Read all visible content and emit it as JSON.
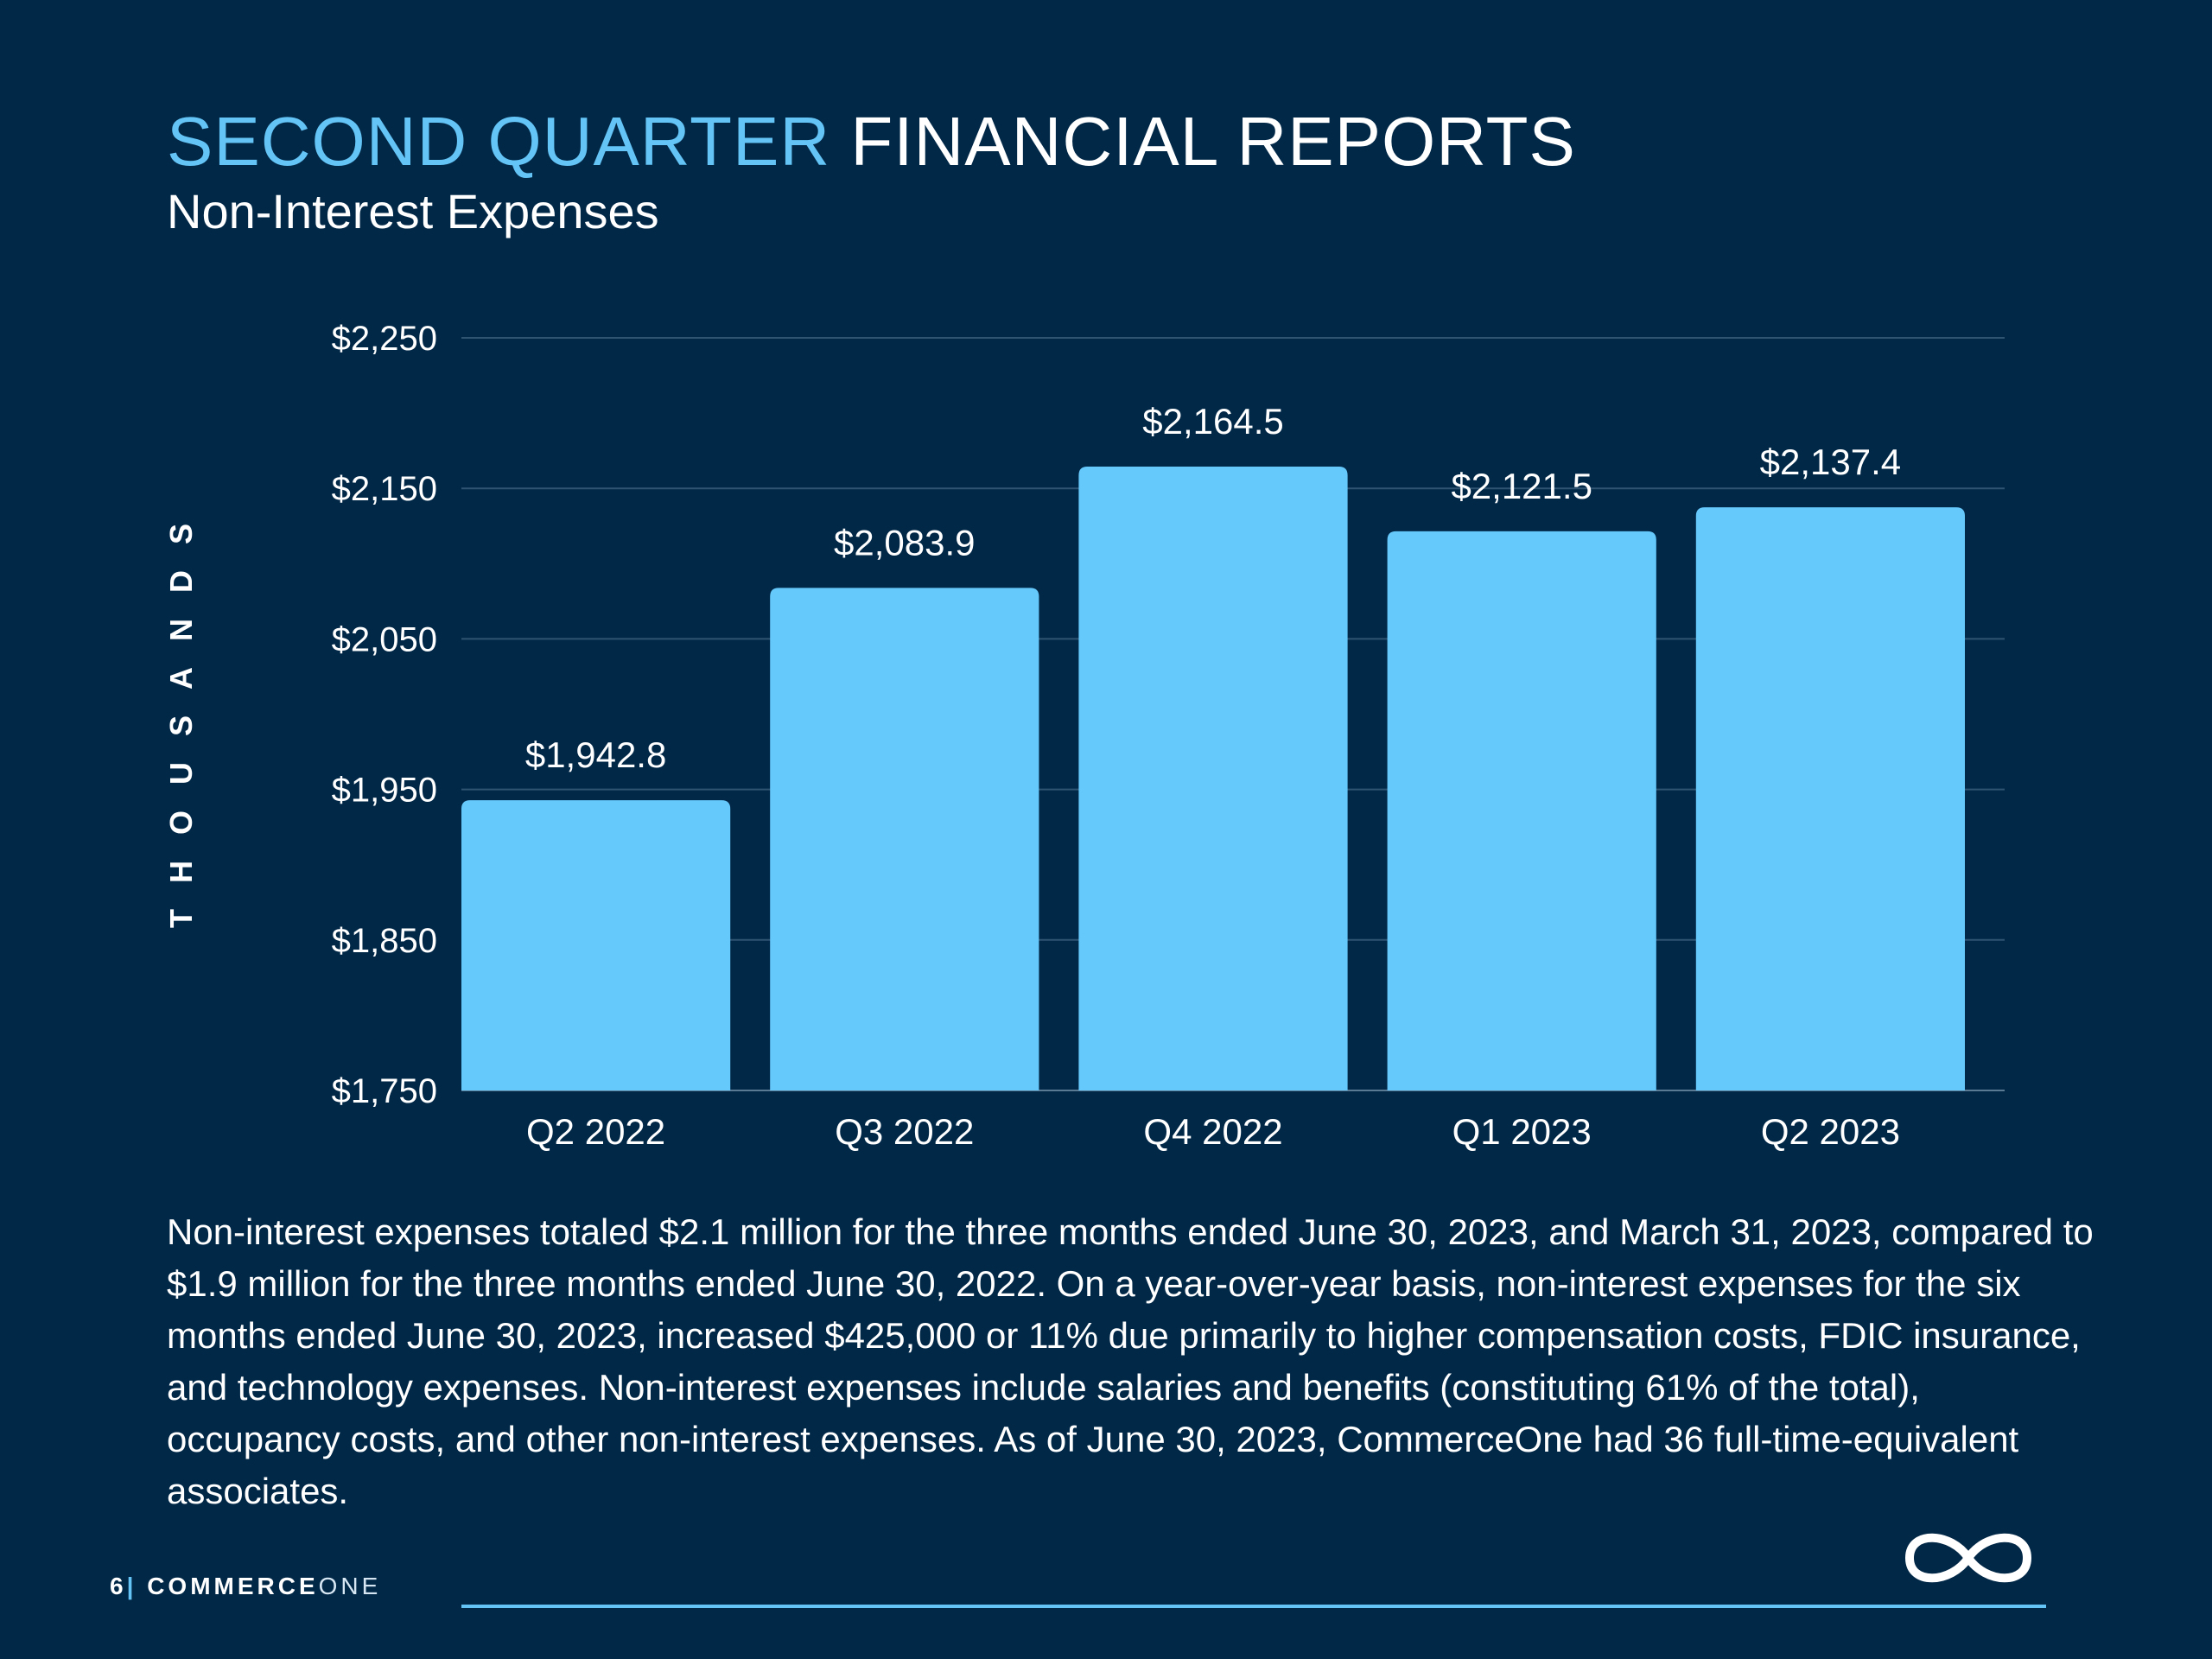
{
  "header": {
    "title_accent": "SECOND QUARTER",
    "title_rest": "FINANCIAL REPORTS",
    "subtitle": "Non-Interest Expenses"
  },
  "chart_data": {
    "type": "bar",
    "categories": [
      "Q2 2022",
      "Q3 2022",
      "Q4 2022",
      "Q1 2023",
      "Q2 2023"
    ],
    "values": [
      1942.8,
      2083.9,
      2164.5,
      2121.5,
      2137.4
    ],
    "value_labels": [
      "$1,942.8",
      "$2,083.9",
      "$2,164.5",
      "$2,121.5",
      "$2,137.4"
    ],
    "ylabel": "THOUSANDS",
    "ylim": [
      1750,
      2250
    ],
    "yticks": [
      1750,
      1850,
      1950,
      2050,
      2150,
      2250
    ],
    "ytick_labels": [
      "$1,750",
      "$1,850",
      "$1,950",
      "$2,050",
      "$2,150",
      "$2,250"
    ],
    "grid": true,
    "bar_color": "#66c9fc"
  },
  "body_text": "Non-interest expenses totaled $2.1 million for the three months ended June 30, 2023, and March 31, 2023, compared to $1.9 million for the three months ended June 30, 2022. On a year-over-year basis, non-interest expenses for the six months ended June 30, 2023, increased $425,000 or 11% due primarily to higher compensation costs, FDIC insurance, and technology expenses. Non-interest expenses include salaries and benefits (constituting 61% of the total), occupancy costs, and other non-interest expenses. As of June 30, 2023, CommerceOne had 36 full-time-equivalent associates.",
  "footer": {
    "page_number": "6",
    "separator": "|",
    "brand_bold": "COMMERCE",
    "brand_light": "ONE",
    "logo_icon": "infinity-icon"
  },
  "colors": {
    "background": "#022848",
    "accent": "#63c4f5",
    "bar": "#66c9fc",
    "text": "#ffffff"
  }
}
